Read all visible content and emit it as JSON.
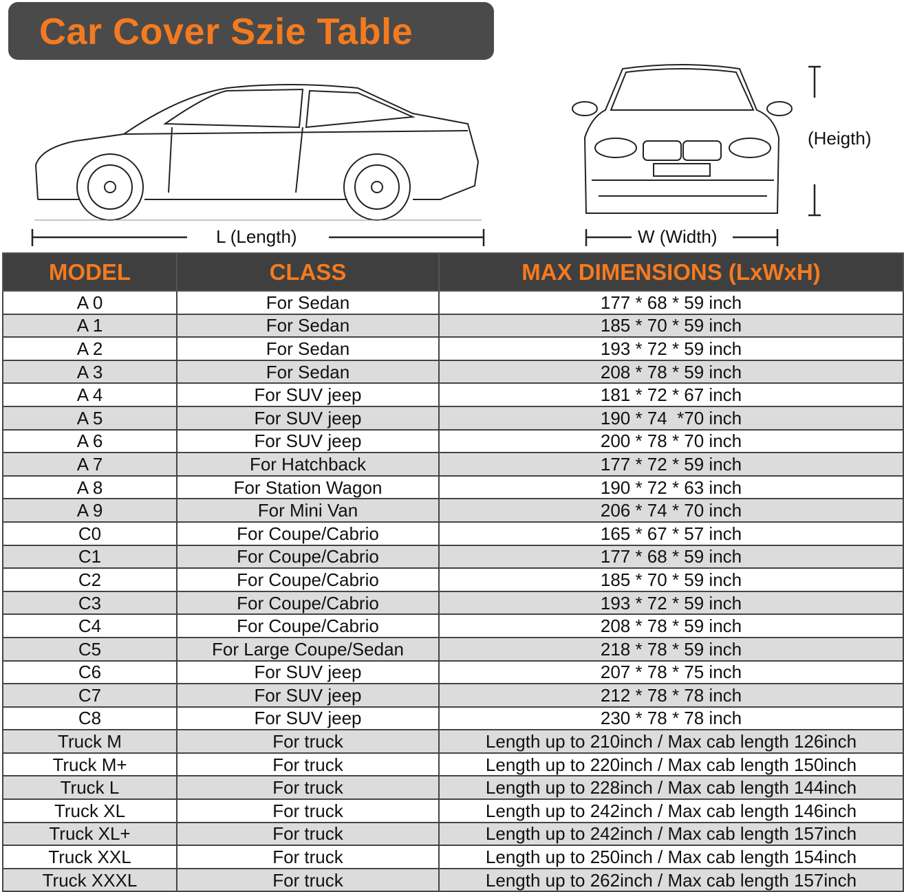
{
  "title": "Car Cover Szie Table",
  "labels": {
    "length": "L (Length)",
    "width": "W (Width)",
    "height": "(Heigth)"
  },
  "colors": {
    "accent": "#f47a20",
    "header_bg": "#3f3f3f",
    "stripe": "#dcdcdc"
  },
  "table": {
    "headers": [
      "MODEL",
      "CLASS",
      "MAX DIMENSIONS (LxWxH)"
    ],
    "rows": [
      [
        "A 0",
        "For Sedan",
        "177 * 68 * 59 inch"
      ],
      [
        "A 1",
        "For Sedan",
        "185 * 70 * 59 inch"
      ],
      [
        "A 2",
        "For Sedan",
        "193 * 72 * 59 inch"
      ],
      [
        "A 3",
        "For Sedan",
        "208 * 78 * 59 inch"
      ],
      [
        "A 4",
        "For SUV jeep",
        "181 * 72 * 67 inch"
      ],
      [
        "A 5",
        "For SUV jeep",
        "190 * 74  *70 inch"
      ],
      [
        "A 6",
        "For SUV jeep",
        "200 * 78 * 70 inch"
      ],
      [
        "A 7",
        "For Hatchback",
        "177 * 72 * 59 inch"
      ],
      [
        "A 8",
        "For Station Wagon",
        "190 * 72 * 63 inch"
      ],
      [
        "A 9",
        "For Mini Van",
        "206 * 74 * 70 inch"
      ],
      [
        "C0",
        "For Coupe/Cabrio",
        "165 * 67 * 57 inch"
      ],
      [
        "C1",
        "For Coupe/Cabrio",
        "177 * 68 * 59 inch"
      ],
      [
        "C2",
        "For Coupe/Cabrio",
        "185 * 70 * 59 inch"
      ],
      [
        "C3",
        "For Coupe/Cabrio",
        "193 * 72 * 59 inch"
      ],
      [
        "C4",
        "For Coupe/Cabrio",
        "208 * 78 * 59 inch"
      ],
      [
        "C5",
        "For Large Coupe/Sedan",
        "218 * 78 * 59 inch"
      ],
      [
        "C6",
        "For SUV jeep",
        "207 * 78 * 75 inch"
      ],
      [
        "C7",
        "For SUV jeep",
        "212 * 78 * 78 inch"
      ],
      [
        "C8",
        "For SUV jeep",
        "230 * 78 * 78 inch"
      ],
      [
        "Truck M",
        "For truck",
        "Length up to 210inch / Max cab length 126inch"
      ],
      [
        "Truck M+",
        "For truck",
        "Length up to 220inch / Max cab length 150inch"
      ],
      [
        "Truck L",
        "For truck",
        "Length up to 228inch / Max cab length 144inch"
      ],
      [
        "Truck XL",
        "For truck",
        "Length up to 242inch / Max cab length 146inch"
      ],
      [
        "Truck XL+",
        "For truck",
        "Length up to 242inch / Max cab length 157inch"
      ],
      [
        "Truck XXL",
        "For truck",
        "Length up to 250inch / Max cab length 154inch"
      ],
      [
        "Truck XXXL",
        "For truck",
        "Length up to 262inch / Max cab length 157inch"
      ]
    ]
  }
}
